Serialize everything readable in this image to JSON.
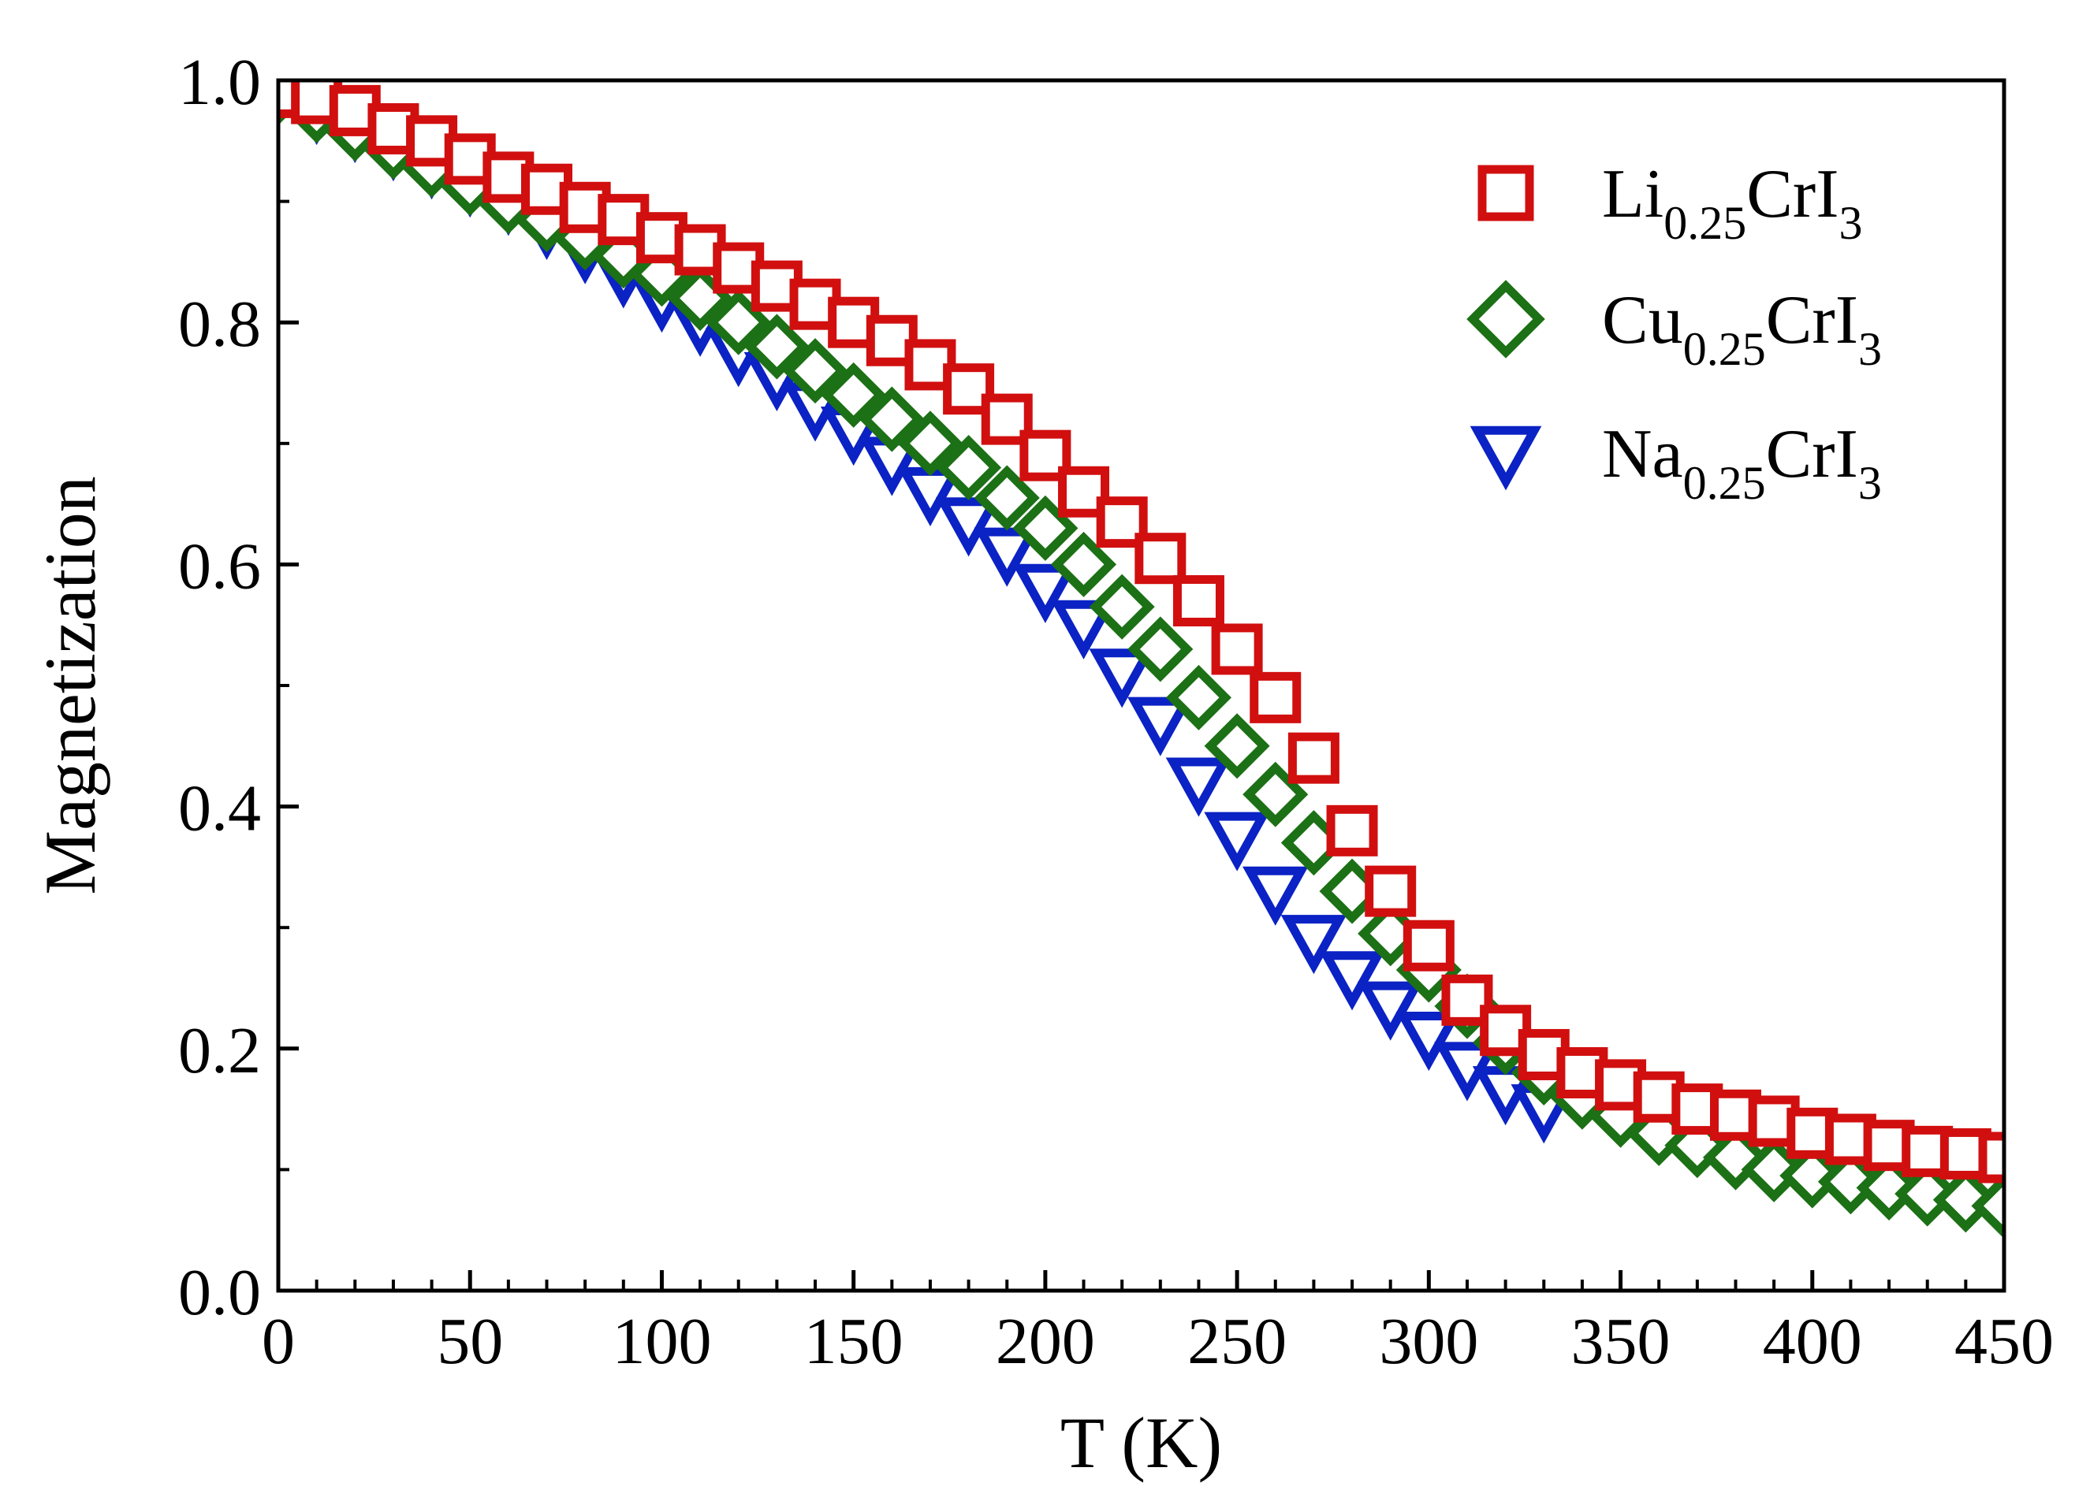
{
  "chart_data": {
    "type": "scatter",
    "title": "",
    "xlabel": "T (K)",
    "ylabel": "Magnetization",
    "xlim": [
      0,
      450
    ],
    "ylim": [
      0.0,
      1.0
    ],
    "xticks": [
      0,
      50,
      100,
      150,
      200,
      250,
      300,
      350,
      400,
      450
    ],
    "xtick_labels": [
      "0",
      "50",
      "100",
      "150",
      "200",
      "250",
      "300",
      "350",
      "400",
      "450"
    ],
    "yticks": [
      0.0,
      0.2,
      0.4,
      0.6,
      0.8,
      1.0
    ],
    "ytick_labels": [
      "0.0",
      "0.2",
      "0.4",
      "0.6",
      "0.8",
      "1.0"
    ],
    "grid": false,
    "legend_position": "top-right",
    "series": [
      {
        "name": "Li0.25CrI3",
        "label_main": "Li",
        "label_sub": "0.25",
        "label_rest": "CrI",
        "label_sub2": "3",
        "marker": "square",
        "color": "#d10f0f",
        "x": [
          0,
          10,
          20,
          30,
          40,
          50,
          60,
          70,
          80,
          90,
          100,
          110,
          120,
          130,
          140,
          150,
          160,
          170,
          180,
          190,
          200,
          210,
          220,
          230,
          240,
          250,
          260,
          270,
          280,
          290,
          300,
          310,
          320,
          330,
          340,
          350,
          360,
          370,
          380,
          390,
          400,
          410,
          420,
          430,
          440,
          450
        ],
        "y": [
          0.99,
          0.985,
          0.975,
          0.96,
          0.95,
          0.935,
          0.92,
          0.91,
          0.895,
          0.885,
          0.87,
          0.86,
          0.845,
          0.83,
          0.815,
          0.8,
          0.785,
          0.765,
          0.745,
          0.72,
          0.69,
          0.66,
          0.635,
          0.605,
          0.57,
          0.53,
          0.49,
          0.44,
          0.38,
          0.33,
          0.285,
          0.24,
          0.215,
          0.195,
          0.18,
          0.17,
          0.16,
          0.15,
          0.145,
          0.14,
          0.13,
          0.125,
          0.12,
          0.115,
          0.113,
          0.11
        ]
      },
      {
        "name": "Cu0.25CrI3",
        "label_main": "Cu",
        "label_sub": "0.25",
        "label_rest": "CrI",
        "label_sub2": "3",
        "marker": "diamond",
        "color": "#1c7015",
        "x": [
          0,
          10,
          20,
          30,
          40,
          50,
          60,
          70,
          80,
          90,
          100,
          110,
          120,
          130,
          140,
          150,
          160,
          170,
          180,
          190,
          200,
          210,
          220,
          230,
          240,
          250,
          260,
          270,
          280,
          290,
          300,
          310,
          320,
          330,
          340,
          350,
          360,
          370,
          380,
          390,
          400,
          410,
          420,
          430,
          440,
          450
        ],
        "y": [
          0.99,
          0.975,
          0.96,
          0.945,
          0.93,
          0.915,
          0.9,
          0.885,
          0.87,
          0.855,
          0.84,
          0.82,
          0.8,
          0.78,
          0.76,
          0.74,
          0.72,
          0.7,
          0.68,
          0.655,
          0.63,
          0.6,
          0.565,
          0.53,
          0.49,
          0.45,
          0.41,
          0.37,
          0.33,
          0.295,
          0.265,
          0.235,
          0.205,
          0.18,
          0.16,
          0.145,
          0.13,
          0.12,
          0.11,
          0.1,
          0.095,
          0.09,
          0.085,
          0.08,
          0.075,
          0.07
        ]
      },
      {
        "name": "Na0.25CrI3",
        "label_main": "Na",
        "label_sub": "0.25",
        "label_rest": "CrI",
        "label_sub2": "3",
        "marker": "triangle-down",
        "color": "#0b22c4",
        "x": [
          0,
          10,
          20,
          30,
          40,
          50,
          60,
          70,
          80,
          90,
          100,
          110,
          120,
          130,
          140,
          150,
          160,
          170,
          180,
          190,
          200,
          210,
          220,
          230,
          240,
          250,
          260,
          270,
          280,
          290,
          300,
          310,
          320,
          330
        ],
        "y": [
          0.99,
          0.975,
          0.96,
          0.945,
          0.93,
          0.915,
          0.9,
          0.88,
          0.86,
          0.84,
          0.82,
          0.8,
          0.775,
          0.755,
          0.73,
          0.71,
          0.685,
          0.66,
          0.635,
          0.61,
          0.58,
          0.55,
          0.51,
          0.47,
          0.42,
          0.375,
          0.33,
          0.29,
          0.26,
          0.235,
          0.21,
          0.185,
          0.165,
          0.15
        ]
      }
    ]
  }
}
